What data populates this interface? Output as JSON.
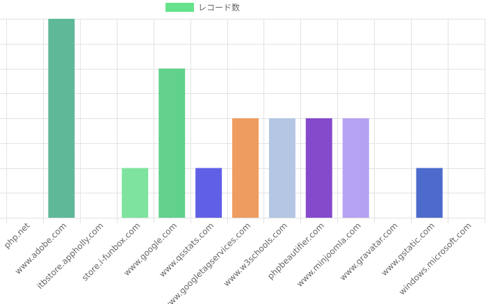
{
  "chart_data": {
    "type": "bar",
    "categories": [
      "php.net",
      "www.adobe.com",
      "itbstore.appholly.com",
      "store.i-funbox.com",
      "www.google.com",
      "www.qsstats.com",
      "www.googletagservices.com",
      "www.w3schools.com",
      "phpbeautifier.com",
      "www.minjoomla.com",
      "www.gravatar.com",
      "www.gstatic.com",
      "windows.microsoft.com"
    ],
    "series": [
      {
        "name": "レコード数",
        "values": [
          0,
          8,
          0,
          2,
          6,
          2,
          4,
          4,
          4,
          4,
          0,
          2,
          0
        ]
      }
    ],
    "bar_colors": [
      "#c8c8c8",
      "#5fb897",
      "#c8c8c8",
      "#7fe3a0",
      "#62d18c",
      "#6060e6",
      "#ee9c60",
      "#b4c6e4",
      "#8549cc",
      "#b6a2f2",
      "#c8c8c8",
      "#4c6bcc",
      "#c8c8c8"
    ],
    "legend_color": "#66e38a",
    "ylim": [
      0,
      8
    ],
    "y_tick_step": 1,
    "grid": true,
    "legend_position": "top-center"
  }
}
